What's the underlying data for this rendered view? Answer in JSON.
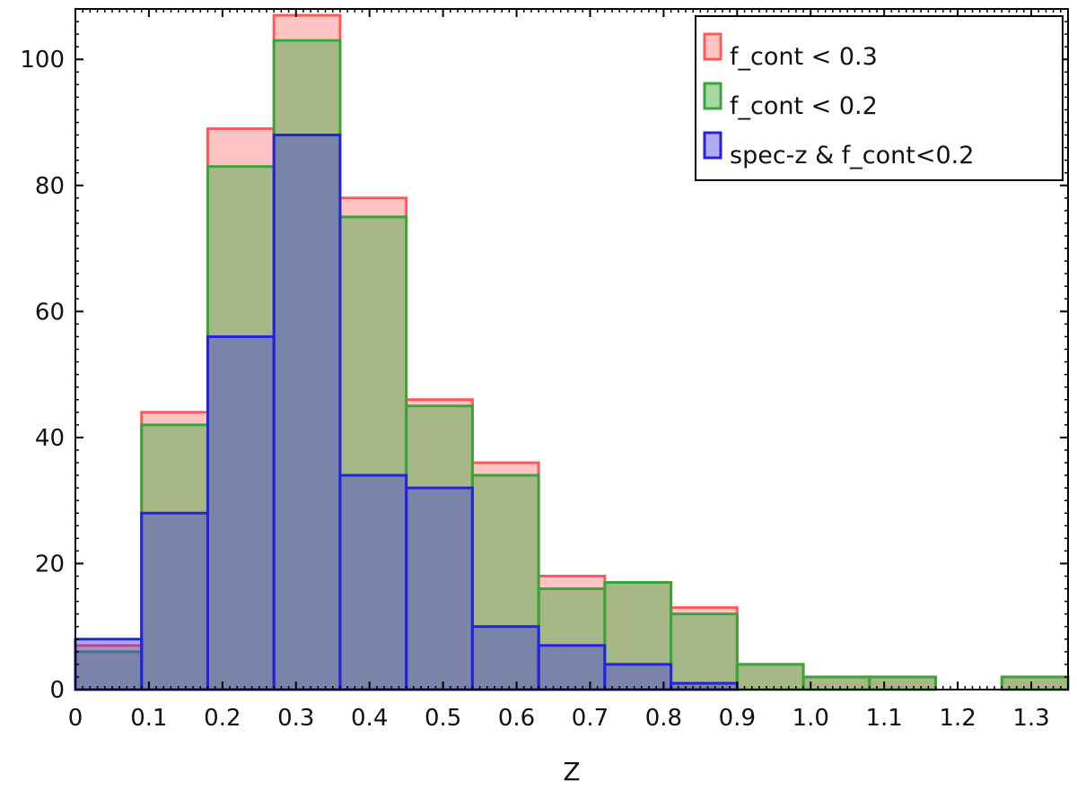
{
  "chart_data": {
    "type": "bar",
    "title": "",
    "xlabel": "Z",
    "ylabel": "",
    "xlim": [
      0,
      1.35
    ],
    "ylim": [
      0,
      108
    ],
    "grid": false,
    "legend_position": "top-right",
    "bin_edges": [
      0,
      0.09,
      0.18,
      0.27,
      0.36,
      0.45,
      0.54,
      0.63,
      0.72,
      0.81,
      0.9,
      0.99,
      1.08,
      1.17,
      1.26,
      1.35
    ],
    "x_ticks": [
      "0",
      "0.1",
      "0.2",
      "0.3",
      "0.4",
      "0.5",
      "0.6",
      "0.7",
      "0.8",
      "0.9",
      "1.0",
      "1.1",
      "1.2",
      "1.3"
    ],
    "y_ticks": [
      "0",
      "20",
      "40",
      "60",
      "80",
      "100"
    ],
    "series": [
      {
        "name": "f_cont < 0.3",
        "color": "#ff4d4d",
        "values": [
          7,
          44,
          89,
          107,
          78,
          46,
          36,
          18,
          17,
          13,
          4,
          2,
          2,
          0,
          2
        ]
      },
      {
        "name": "f_cont < 0.2",
        "color": "#33aa33",
        "values": [
          6,
          42,
          83,
          103,
          75,
          45,
          34,
          16,
          17,
          12,
          4,
          2,
          2,
          0,
          2
        ]
      },
      {
        "name": "spec-z & f_cont<0.2",
        "color": "#3333ff",
        "values": [
          8,
          28,
          56,
          88,
          34,
          32,
          10,
          7,
          4,
          1,
          0,
          0,
          0,
          0,
          0
        ]
      }
    ]
  }
}
